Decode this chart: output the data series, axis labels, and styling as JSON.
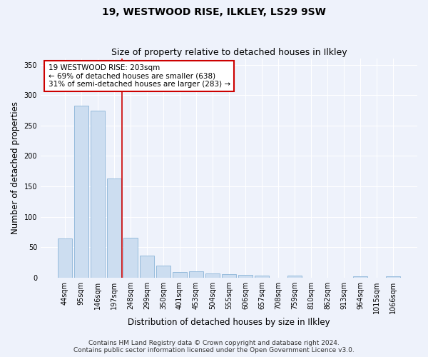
{
  "title": "19, WESTWOOD RISE, ILKLEY, LS29 9SW",
  "subtitle": "Size of property relative to detached houses in Ilkley",
  "xlabel": "Distribution of detached houses by size in Ilkley",
  "ylabel": "Number of detached properties",
  "categories": [
    "44sqm",
    "95sqm",
    "146sqm",
    "197sqm",
    "248sqm",
    "299sqm",
    "350sqm",
    "401sqm",
    "453sqm",
    "504sqm",
    "555sqm",
    "606sqm",
    "657sqm",
    "708sqm",
    "759sqm",
    "810sqm",
    "862sqm",
    "913sqm",
    "964sqm",
    "1015sqm",
    "1066sqm"
  ],
  "values": [
    64,
    283,
    274,
    163,
    65,
    36,
    20,
    9,
    10,
    7,
    5,
    4,
    3,
    0,
    3,
    0,
    0,
    0,
    2,
    0,
    2
  ],
  "bar_color": "#ccddf0",
  "bar_edge_color": "#8ab4d8",
  "property_line_x": 3.5,
  "annotation_text": "19 WESTWOOD RISE: 203sqm\n← 69% of detached houses are smaller (638)\n31% of semi-detached houses are larger (283) →",
  "annotation_box_color": "white",
  "annotation_box_edge_color": "#cc0000",
  "vline_color": "#cc0000",
  "background_color": "#eef2fb",
  "grid_color": "white",
  "footer_text": "Contains HM Land Registry data © Crown copyright and database right 2024.\nContains public sector information licensed under the Open Government Licence v3.0.",
  "ylim": [
    0,
    360
  ],
  "title_fontsize": 10,
  "subtitle_fontsize": 9,
  "axis_label_fontsize": 8.5,
  "tick_fontsize": 7,
  "footer_fontsize": 6.5,
  "annotation_fontsize": 7.5
}
